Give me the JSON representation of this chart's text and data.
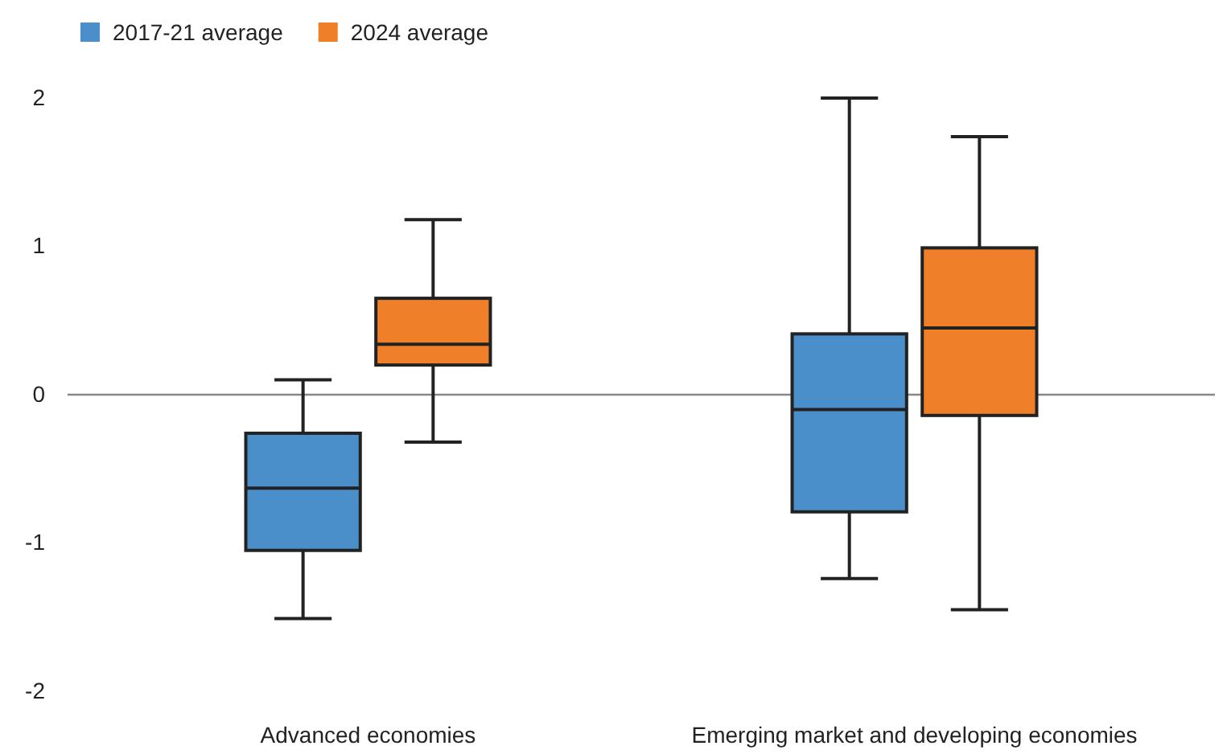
{
  "chart_data": {
    "type": "box",
    "categories": [
      "Advanced economies",
      "Emerging market and developing economies"
    ],
    "series": [
      {
        "name": "2017-21 average",
        "color": "#4a8fc9",
        "boxes": [
          {
            "low": -1.51,
            "q1": -1.05,
            "median": -0.63,
            "q3": -0.26,
            "high": 0.1
          },
          {
            "low": -1.24,
            "q1": -0.79,
            "median": -0.1,
            "q3": 0.41,
            "high": 2.0
          }
        ]
      },
      {
        "name": "2024 average",
        "color": "#f07f2a",
        "boxes": [
          {
            "low": -0.32,
            "q1": 0.2,
            "median": 0.34,
            "q3": 0.65,
            "high": 1.18
          },
          {
            "low": -1.45,
            "q1": -0.14,
            "median": 0.45,
            "q3": 0.99,
            "high": 1.74
          }
        ]
      }
    ],
    "ylim": [
      -2,
      2
    ],
    "yticks": [
      -2,
      -1,
      0,
      1,
      2
    ],
    "grid": false,
    "legend": "top left",
    "ref_lines": [
      {
        "axis": "y",
        "value": 0,
        "color": "#888888"
      }
    ]
  }
}
